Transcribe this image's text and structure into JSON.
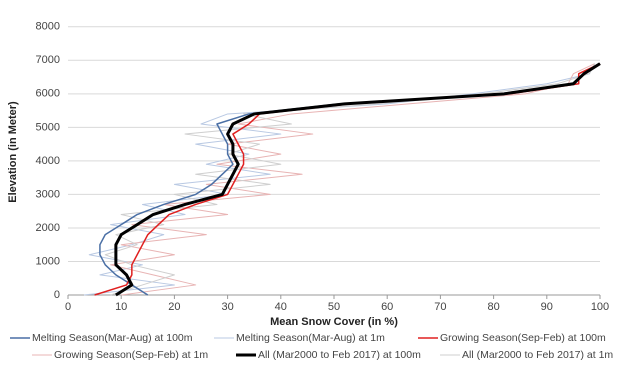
{
  "chart_data": {
    "type": "line",
    "xlabel": "Mean Snow Cover (in %)",
    "ylabel": "Elevation (in Meter)",
    "y": [
      0,
      300,
      600,
      900,
      1200,
      1500,
      1800,
      2100,
      2400,
      2700,
      3000,
      3300,
      3600,
      3900,
      4200,
      4500,
      4800,
      5100,
      5400,
      5700,
      6000,
      6300,
      6600,
      6900
    ],
    "xlim": [
      0,
      100
    ],
    "xticks": [
      0,
      10,
      20,
      30,
      40,
      50,
      60,
      70,
      80,
      90,
      100
    ],
    "ylim": [
      0,
      8500
    ],
    "yticks": [
      0,
      1000,
      2000,
      3000,
      4000,
      5000,
      6000,
      7000,
      8000
    ],
    "grid": true,
    "series": [
      {
        "name": "Melting Season(Mar-Aug) at 100m",
        "color": "#4a6fa5",
        "width": 1.5,
        "values": [
          15,
          12,
          9,
          7,
          6,
          6,
          7,
          10,
          13,
          18,
          24,
          27,
          29,
          31,
          30,
          30,
          29,
          28,
          34,
          51,
          81,
          95,
          97,
          100
        ]
      },
      {
        "name": "Melting Season(Mar-Aug) at 1m",
        "color": "#b9c9e3",
        "width": 1,
        "values": [
          3,
          20,
          6,
          14,
          4,
          12,
          18,
          8,
          22,
          14,
          30,
          20,
          38,
          26,
          34,
          24,
          40,
          25,
          30,
          60,
          76,
          90,
          98,
          99
        ]
      },
      {
        "name": "Growing Season(Sep-Feb) at 100m",
        "color": "#e02020",
        "width": 1.5,
        "values": [
          5,
          11,
          12,
          12,
          13,
          14,
          15,
          17,
          19,
          24,
          30,
          31,
          32,
          33,
          33,
          32,
          31,
          34,
          36,
          53,
          83,
          96,
          96,
          100
        ]
      },
      {
        "name": "Growing Season(Sep-Feb) at 1m",
        "color": "#e8b4b4",
        "width": 1,
        "values": [
          10,
          24,
          16,
          8,
          20,
          10,
          26,
          12,
          30,
          18,
          38,
          26,
          44,
          28,
          40,
          30,
          46,
          32,
          42,
          64,
          86,
          94,
          95,
          99
        ]
      },
      {
        "name": "All (Mar2000 to Feb 2017) at 100m",
        "color": "#000000",
        "width": 3,
        "values": [
          9,
          12,
          11,
          9,
          9,
          9,
          10,
          13,
          16,
          22,
          29,
          30,
          31,
          32,
          31,
          31,
          30,
          31,
          35,
          52,
          82,
          95,
          97,
          100
        ]
      },
      {
        "name": "All (Mar2000 to Feb 2017) at 1m",
        "color": "#cfcfcf",
        "width": 1,
        "values": [
          8,
          14,
          20,
          12,
          7,
          13,
          9,
          18,
          10,
          28,
          20,
          38,
          24,
          40,
          30,
          36,
          22,
          42,
          33,
          58,
          78,
          92,
          98,
          99
        ]
      }
    ]
  }
}
